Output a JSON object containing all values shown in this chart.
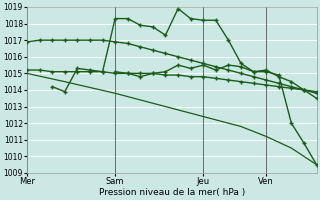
{
  "xlabel": "Pression niveau de la mer( hPa )",
  "ylim": [
    1009,
    1019
  ],
  "yticks": [
    1009,
    1010,
    1011,
    1012,
    1013,
    1014,
    1015,
    1016,
    1017,
    1018,
    1019
  ],
  "bg_color": "#cce8e4",
  "grid_color": "#ffffff",
  "line_color": "#1a5c1a",
  "day_labels": [
    "Mer",
    "Sam",
    "Jeu",
    "Ven"
  ],
  "day_positions": [
    0,
    7,
    14,
    19
  ],
  "vline_positions": [
    0,
    7,
    14,
    19
  ],
  "xlim": [
    0,
    23
  ],
  "series": [
    {
      "x": [
        0,
        1,
        2,
        3,
        4,
        5,
        6,
        7,
        8,
        9,
        10,
        11,
        12,
        13,
        14,
        15,
        16,
        17,
        18,
        19,
        20,
        21,
        22,
        23
      ],
      "y": [
        1016.9,
        1017.0,
        1017.0,
        1017.0,
        1017.0,
        1017.0,
        1017.0,
        1016.9,
        1016.8,
        1016.6,
        1016.4,
        1016.2,
        1016.0,
        1015.8,
        1015.6,
        1015.4,
        1015.2,
        1015.0,
        1014.8,
        1014.6,
        1014.4,
        1014.2,
        1014.0,
        1013.8
      ],
      "marker": true,
      "lw": 1.0
    },
    {
      "x": [
        0,
        1,
        2,
        3,
        4,
        5,
        6,
        7,
        8,
        9,
        10,
        11,
        12,
        13,
        14,
        15,
        16,
        17,
        18,
        19,
        20,
        21,
        22,
        23
      ],
      "y": [
        1015.2,
        1015.2,
        1015.1,
        1015.1,
        1015.1,
        1015.1,
        1015.1,
        1015.0,
        1015.0,
        1015.0,
        1015.0,
        1014.9,
        1014.9,
        1014.8,
        1014.8,
        1014.7,
        1014.6,
        1014.5,
        1014.4,
        1014.3,
        1014.2,
        1014.1,
        1014.0,
        1013.9
      ],
      "marker": true,
      "lw": 1.0
    },
    {
      "x": [
        2,
        3,
        4,
        5,
        6,
        7,
        8,
        9,
        10,
        11,
        12,
        13,
        14,
        15,
        16,
        17,
        18,
        19,
        20,
        21,
        22,
        23
      ],
      "y": [
        1014.2,
        1013.9,
        1015.3,
        1015.2,
        1015.1,
        1018.3,
        1018.3,
        1017.9,
        1017.8,
        1017.3,
        1018.9,
        1018.3,
        1018.2,
        1018.2,
        1017.0,
        1015.6,
        1015.1,
        1015.1,
        1014.9,
        1012.0,
        1010.8,
        1009.5
      ],
      "marker": true,
      "lw": 1.0
    },
    {
      "x": [
        0,
        3,
        7,
        12,
        17,
        19,
        21,
        23
      ],
      "y": [
        1015.0,
        1014.5,
        1013.8,
        1012.8,
        1011.8,
        1011.2,
        1010.5,
        1009.5
      ],
      "marker": false,
      "lw": 0.9
    },
    {
      "x": [
        7,
        8,
        9,
        10,
        11,
        12,
        13,
        14,
        15,
        16,
        17,
        18,
        19,
        20,
        21,
        22,
        23
      ],
      "y": [
        1015.1,
        1015.0,
        1014.8,
        1015.0,
        1015.1,
        1015.5,
        1015.3,
        1015.5,
        1015.2,
        1015.5,
        1015.4,
        1015.1,
        1015.2,
        1014.8,
        1014.5,
        1014.0,
        1013.5
      ],
      "marker": true,
      "lw": 1.0
    }
  ]
}
